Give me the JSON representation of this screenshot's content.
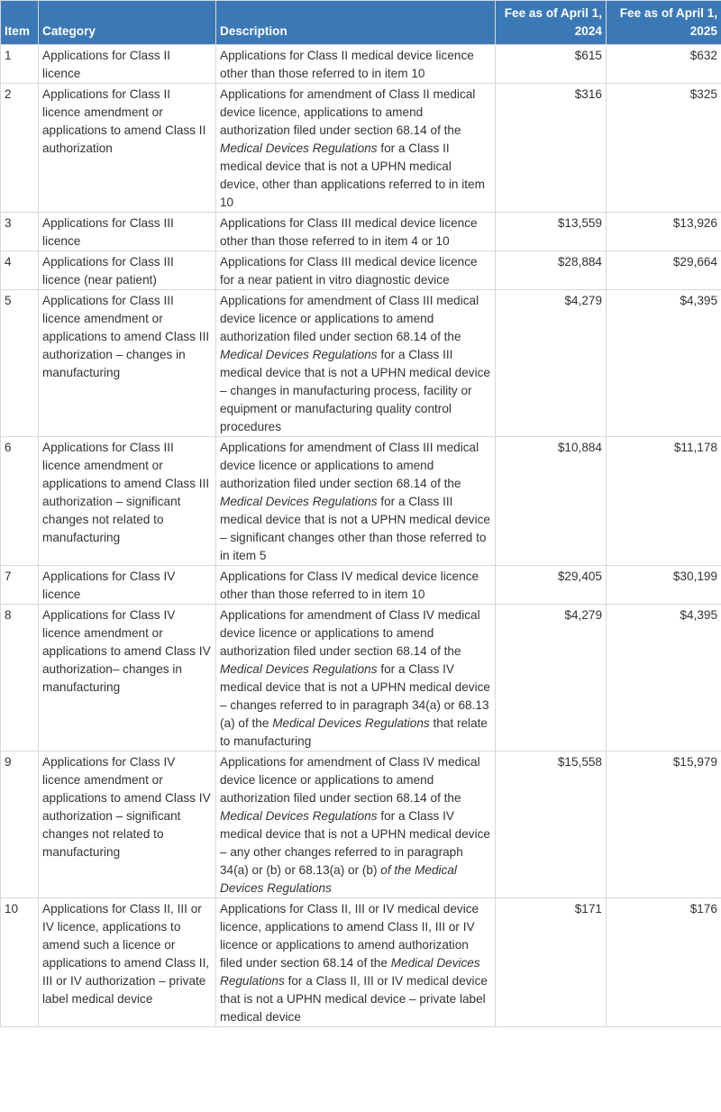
{
  "table": {
    "headers": [
      "Item",
      "Category",
      "Description",
      "Fee as of April 1, 2024",
      "Fee as of April 1, 2025"
    ],
    "rows": [
      {
        "item": 1,
        "category": "Applications for Class II licence",
        "description": [
          "Applications for Class II medical device licence other than those referred to in item 10"
        ],
        "fee_2024": "$615",
        "fee_2025": "$632"
      },
      {
        "item": 2,
        "category": "Applications for Class II licence amendment or applications to amend Class II authorization",
        "description": [
          "Applications for amendment of Class II medical device licence, applications to amend authorization filed under section 68.14 of the ",
          {
            "italic": "Medical Devices Regulations"
          },
          " for a Class II medical device that is not a UPHN medical device, other than applications referred to in item 10"
        ],
        "fee_2024": "$316",
        "fee_2025": "$325"
      },
      {
        "item": 3,
        "category": "Applications for Class III licence",
        "description": [
          "Applications for Class III medical device licence other than those referred to in item 4 or 10"
        ],
        "fee_2024": "$13,559",
        "fee_2025": "$13,926"
      },
      {
        "item": 4,
        "category": "Applications for Class III licence (near patient)",
        "description": [
          "Applications for Class III medical device licence for a near patient in vitro diagnostic device"
        ],
        "fee_2024": "$28,884",
        "fee_2025": "$29,664"
      },
      {
        "item": 5,
        "category": "Applications for Class III licence amendment or applications to amend Class III authorization – changes in manufacturing",
        "description": [
          "Applications for amendment of Class III medical device licence or applications to amend authorization filed under section 68.14 of the ",
          {
            "italic": "Medical Devices Regulations"
          },
          " for a Class III medical device that is not a UPHN medical device – changes in manufacturing process, facility or equipment or manufacturing quality control procedures"
        ],
        "fee_2024": "$4,279",
        "fee_2025": "$4,395"
      },
      {
        "item": 6,
        "category": "Applications for Class III licence amendment or applications to amend Class III authorization – significant changes not related to manufacturing",
        "description": [
          "Applications for amendment of Class III medical device licence or applications to amend authorization filed under section 68.14 of the ",
          {
            "italic": "Medical Devices Regulations"
          },
          " for a Class III medical device that is not a UPHN medical device – significant changes other than those referred to in item 5"
        ],
        "fee_2024": "$10,884",
        "fee_2025": "$11,178"
      },
      {
        "item": 7,
        "category": "Applications for Class IV licence",
        "description": [
          "Applications for Class IV medical device licence other than those referred to in item 10"
        ],
        "fee_2024": "$29,405",
        "fee_2025": "$30,199"
      },
      {
        "item": 8,
        "category": "Applications for Class IV licence amendment or applications to amend Class IV authorization– changes in manufacturing",
        "description": [
          "Applications for amendment of Class IV medical device licence or applications to amend authorization filed under section 68.14 of the ",
          {
            "italic": "Medical Devices Regulations"
          },
          " for a Class IV medical device that is not a UPHN medical device – changes referred to in paragraph 34(a) or 68.13 (a) of the ",
          {
            "italic": "Medical Devices Regulations"
          },
          " that relate to manufacturing"
        ],
        "fee_2024": "$4,279",
        "fee_2025": "$4,395"
      },
      {
        "item": 9,
        "category": "Applications for Class IV licence amendment or applications to amend Class IV authorization – significant changes not related to manufacturing",
        "description": [
          "Applications for amendment of Class IV medical device licence or applications to amend authorization filed under section 68.14 of the ",
          {
            "italic": "Medical Devices Regulations"
          },
          " for a Class IV medical device that is not a UPHN medical device – any other changes referred to in paragraph 34(a) or (b) or 68.13(a) or (b) ",
          {
            "italic": "of the Medical Devices Regulations"
          }
        ],
        "fee_2024": "$15,558",
        "fee_2025": "$15,979"
      },
      {
        "item": 10,
        "category": "Applications for Class II, III or IV licence, applications to amend such a licence or applications to amend Class II, III or IV authorization – private label medical device",
        "description": [
          "Applications for Class II, III or IV medical device licence, applications to amend Class II, III or IV licence or applications to amend authorization filed under section 68.14 of the ",
          {
            "italic": "Medical Devices Regulations"
          },
          " for a Class II, III or IV medical device that is not a UPHN medical device – private label medical device"
        ],
        "fee_2024": "$171",
        "fee_2025": "$176"
      }
    ]
  }
}
